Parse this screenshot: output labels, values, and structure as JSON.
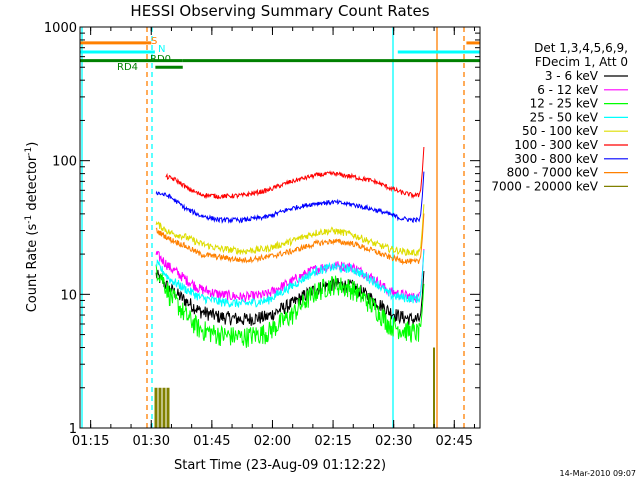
{
  "chart_data": {
    "type": "line",
    "title": "HESSI Observing Summary Count Rates",
    "xlabel": "Start Time (23-Aug-09 01:12:22)",
    "ylabel_main": "Count Rate (s",
    "ylabel_sup1": "-1",
    "ylabel_mid": " detector",
    "ylabel_sup2": "-1",
    "ylabel_end": ")",
    "yscale": "log",
    "ylim": [
      1,
      1000
    ],
    "xlim": [
      1.2061,
      2.8561
    ],
    "x_ticks": [
      {
        "x": 1.25,
        "label": "01:15"
      },
      {
        "x": 1.5,
        "label": "01:30"
      },
      {
        "x": 1.75,
        "label": "01:45"
      },
      {
        "x": 2.0,
        "label": "02:00"
      },
      {
        "x": 2.25,
        "label": "02:15"
      },
      {
        "x": 2.5,
        "label": "02:30"
      },
      {
        "x": 2.75,
        "label": "02:45"
      }
    ],
    "y_ticks": [
      {
        "y": 1,
        "label": "1"
      },
      {
        "y": 10,
        "label": "10"
      },
      {
        "y": 100,
        "label": "100"
      },
      {
        "y": 1000,
        "label": "1000"
      }
    ],
    "legend_header": [
      "Det 1,3,4,5,6,9,",
      "FDecim 1, Att 0"
    ],
    "legend_position": "right",
    "series": [
      {
        "name": "3 - 6 keV",
        "color": "#000000",
        "points": [
          [
            1.52,
            14
          ],
          [
            1.575,
            11
          ],
          [
            1.64,
            9
          ],
          [
            1.7,
            7.5
          ],
          [
            1.78,
            6.8
          ],
          [
            1.88,
            6.5
          ],
          [
            1.98,
            6.8
          ],
          [
            2.08,
            8.5
          ],
          [
            2.18,
            11
          ],
          [
            2.25,
            12
          ],
          [
            2.33,
            11.5
          ],
          [
            2.42,
            9
          ],
          [
            2.48,
            7.5
          ],
          [
            2.53,
            6.8
          ],
          [
            2.58,
            6.5
          ],
          [
            2.605,
            6.5
          ]
        ]
      },
      {
        "name": "6 - 12 keV",
        "color": "#ff00ff",
        "points": [
          [
            1.52,
            20
          ],
          [
            1.575,
            16
          ],
          [
            1.64,
            13
          ],
          [
            1.7,
            11
          ],
          [
            1.78,
            10
          ],
          [
            1.88,
            9.5
          ],
          [
            1.98,
            10
          ],
          [
            2.08,
            12.5
          ],
          [
            2.18,
            15.5
          ],
          [
            2.25,
            16.5
          ],
          [
            2.33,
            16
          ],
          [
            2.42,
            13
          ],
          [
            2.48,
            10.5
          ],
          [
            2.53,
            10
          ],
          [
            2.58,
            9.5
          ],
          [
            2.605,
            9.5
          ]
        ]
      },
      {
        "name": "12 - 25 keV",
        "color": "#00ff00",
        "points": [
          [
            1.52,
            16
          ],
          [
            1.575,
            10
          ],
          [
            1.64,
            7
          ],
          [
            1.7,
            5.5
          ],
          [
            1.78,
            5
          ],
          [
            1.88,
            4.8
          ],
          [
            1.98,
            5.2
          ],
          [
            2.08,
            7
          ],
          [
            2.18,
            10.5
          ],
          [
            2.25,
            12
          ],
          [
            2.33,
            11
          ],
          [
            2.42,
            8
          ],
          [
            2.48,
            6
          ],
          [
            2.53,
            5.5
          ],
          [
            2.58,
            5.2
          ],
          [
            2.605,
            5.2
          ]
        ]
      },
      {
        "name": "25 - 50 keV",
        "color": "#00ffff",
        "points": [
          [
            1.52,
            17
          ],
          [
            1.575,
            13
          ],
          [
            1.64,
            11
          ],
          [
            1.7,
            9.5
          ],
          [
            1.78,
            8.8
          ],
          [
            1.88,
            8.5
          ],
          [
            1.98,
            9
          ],
          [
            2.08,
            11.5
          ],
          [
            2.18,
            15
          ],
          [
            2.25,
            16
          ],
          [
            2.33,
            15.5
          ],
          [
            2.42,
            12.5
          ],
          [
            2.48,
            10
          ],
          [
            2.53,
            9.5
          ],
          [
            2.58,
            9.3
          ],
          [
            2.605,
            9.3
          ]
        ]
      },
      {
        "name": "50 - 100 keV",
        "color": "#dddd00",
        "points": [
          [
            1.52,
            34
          ],
          [
            1.575,
            29
          ],
          [
            1.64,
            27
          ],
          [
            1.7,
            24
          ],
          [
            1.78,
            22
          ],
          [
            1.88,
            21
          ],
          [
            1.98,
            22
          ],
          [
            2.08,
            25
          ],
          [
            2.18,
            29
          ],
          [
            2.25,
            30
          ],
          [
            2.33,
            28
          ],
          [
            2.42,
            24
          ],
          [
            2.48,
            22
          ],
          [
            2.53,
            21
          ],
          [
            2.58,
            20.5
          ],
          [
            2.605,
            20.5
          ]
        ]
      },
      {
        "name": "100 - 300 keV",
        "color": "#ff0000",
        "points": [
          [
            1.56,
            76
          ],
          [
            1.6,
            72
          ],
          [
            1.65,
            62
          ],
          [
            1.7,
            56
          ],
          [
            1.78,
            54
          ],
          [
            1.88,
            55
          ],
          [
            1.98,
            60
          ],
          [
            2.08,
            70
          ],
          [
            2.18,
            78
          ],
          [
            2.25,
            80
          ],
          [
            2.33,
            76
          ],
          [
            2.42,
            70
          ],
          [
            2.48,
            63
          ],
          [
            2.53,
            58
          ],
          [
            2.58,
            55
          ],
          [
            2.605,
            55
          ]
        ]
      },
      {
        "name": "300 - 800 keV",
        "color": "#0000ff",
        "points": [
          [
            1.52,
            58
          ],
          [
            1.575,
            54
          ],
          [
            1.64,
            44
          ],
          [
            1.7,
            39
          ],
          [
            1.78,
            36
          ],
          [
            1.88,
            36
          ],
          [
            1.98,
            38
          ],
          [
            2.08,
            44
          ],
          [
            2.18,
            48
          ],
          [
            2.25,
            49
          ],
          [
            2.33,
            47
          ],
          [
            2.42,
            43
          ],
          [
            2.48,
            40
          ],
          [
            2.53,
            37
          ],
          [
            2.58,
            36
          ],
          [
            2.605,
            36
          ]
        ]
      },
      {
        "name": "800 - 7000 keV",
        "color": "#ff8000",
        "points": [
          [
            1.52,
            30
          ],
          [
            1.575,
            26
          ],
          [
            1.64,
            23
          ],
          [
            1.7,
            20
          ],
          [
            1.78,
            19
          ],
          [
            1.88,
            18
          ],
          [
            1.98,
            19
          ],
          [
            2.08,
            21
          ],
          [
            2.18,
            24
          ],
          [
            2.25,
            25
          ],
          [
            2.33,
            24
          ],
          [
            2.42,
            21
          ],
          [
            2.48,
            19
          ],
          [
            2.53,
            18
          ],
          [
            2.58,
            17.5
          ],
          [
            2.605,
            17.5
          ]
        ]
      },
      {
        "name": "7000 - 20000 keV",
        "color": "#808000",
        "points": []
      }
    ],
    "flags": [
      {
        "label": "S",
        "color": "#ff8000",
        "y": 760,
        "segments": [
          [
            1.2061,
            1.5
          ],
          [
            2.8,
            2.8561
          ]
        ]
      },
      {
        "label": "N",
        "color": "#00ffff",
        "y": 650,
        "segments": [
          [
            1.2061,
            1.515
          ],
          [
            2.517,
            2.8561
          ]
        ]
      },
      {
        "label": "RD0",
        "color": "#008000",
        "y": 560,
        "segments": [
          [
            1.2061,
            1.63
          ],
          [
            1.63,
            2.8561
          ]
        ]
      },
      {
        "label": "RD4",
        "color": "#008000",
        "y": 500,
        "segments": [
          [
            1.517,
            1.63
          ]
        ]
      }
    ],
    "timestamp": "14-Mar-2010 09:07"
  }
}
